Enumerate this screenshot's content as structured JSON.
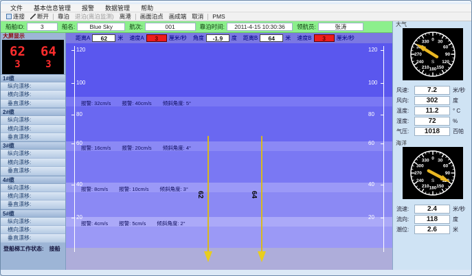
{
  "menu": {
    "items": [
      "文件",
      "基本信息管理",
      "报警",
      "数据管理",
      "帮助"
    ]
  },
  "toolbar": {
    "items": [
      {
        "label": "连接",
        "icon": "connect-icon",
        "disabled": false,
        "sep_after": false
      },
      {
        "label": "断开",
        "icon": "disconnect-icon",
        "disabled": false,
        "sep_after": true
      },
      {
        "label": "靠泊",
        "disabled": false,
        "sep_after": false
      },
      {
        "label": "退泊(离泊监测)",
        "disabled": true,
        "sep_after": false
      },
      {
        "label": "离港",
        "disabled": false,
        "sep_after": true
      },
      {
        "label": "画面泊点",
        "disabled": false,
        "sep_after": false
      },
      {
        "label": "画成端",
        "disabled": false,
        "sep_after": false
      },
      {
        "label": "取消",
        "disabled": false,
        "sep_after": true
      },
      {
        "label": "PMS",
        "disabled": false,
        "sep_after": false
      }
    ]
  },
  "info_bar": {
    "fields": [
      {
        "label": "船舶ID:",
        "value": "3"
      },
      {
        "label": "船名:",
        "value": "Blue Sky"
      },
      {
        "label": "航次:",
        "value": "001"
      },
      {
        "label": "靠泊时间:",
        "value": "2011-4-15 10:30:36"
      },
      {
        "label": "领航员:",
        "value": "张涛"
      }
    ]
  },
  "metrics_bar": {
    "fields": [
      {
        "label": "距离A",
        "value": "62",
        "unit": "米",
        "alert": false
      },
      {
        "label": "速度A",
        "value": "3",
        "unit": "厘米/秒",
        "alert": true
      },
      {
        "label": "角度",
        "value": "-1.9",
        "unit": "度",
        "alert": false
      },
      {
        "label": "距离B",
        "value": "64",
        "unit": "米",
        "alert": false
      },
      {
        "label": "速度B",
        "value": "3",
        "unit": "厘米/秒",
        "alert": true
      }
    ]
  },
  "sidebar": {
    "display_label": "大屏显示",
    "display_rows": [
      [
        "62",
        "64"
      ],
      [
        "3",
        "3"
      ]
    ],
    "groups": [
      {
        "header": "1#缆",
        "rows": [
          "纵向漂移:",
          "横向漂移:",
          "垂直漂移:"
        ]
      },
      {
        "header": "2#缆",
        "rows": [
          "纵向漂移:",
          "横向漂移:",
          "垂直漂移:"
        ]
      },
      {
        "header": "3#缆",
        "rows": [
          "纵向漂移:",
          "横向漂移:",
          "垂直漂移:"
        ]
      },
      {
        "header": "4#缆",
        "rows": [
          "纵向漂移:",
          "横向漂移:",
          "垂直漂移:"
        ]
      },
      {
        "header": "5#缆",
        "rows": [
          "纵向漂移:",
          "横向漂移:",
          "垂直漂移:"
        ]
      }
    ],
    "status_label": "登船梯工作状态:",
    "status_value": "接船"
  },
  "plot": {
    "axis_labels": [
      "120",
      "100",
      "80",
      "60",
      "40",
      "20"
    ],
    "alarm_bands": [
      {
        "warn": "报警: 32cm/s",
        "alarm": "报警: 40cm/s",
        "tilt": "倾斜角度: 5°"
      },
      {
        "warn": "报警: 16cm/s",
        "alarm": "报警: 20cm/s",
        "tilt": "倾斜角度: 4°"
      },
      {
        "warn": "报警: 8cm/s",
        "alarm": "报警: 10cm/s",
        "tilt": "倾斜角度: 3°"
      },
      {
        "warn": "报警: 4cm/s",
        "alarm": "报警: 5cm/s",
        "tilt": "倾斜角度: 2°"
      }
    ],
    "mooring_labels": [
      "62",
      "64"
    ]
  },
  "right_panel": {
    "sections": [
      {
        "title": "大气",
        "needle_deg": 302,
        "south_label": "S",
        "dial_numbers": [
          "0",
          "30",
          "60",
          "90",
          "120",
          "150",
          "180",
          "210",
          "240",
          "270",
          "300",
          "330"
        ],
        "fields": [
          {
            "label": "风速:",
            "value": "7.2",
            "unit": "米/秒"
          },
          {
            "label": "风向:",
            "value": "302",
            "unit": "度"
          },
          {
            "label": "温度:",
            "value": "11.2",
            "unit": "° C"
          },
          {
            "label": "湿度:",
            "value": "72",
            "unit": "%"
          },
          {
            "label": "气压:",
            "value": "1018",
            "unit": "百帕"
          }
        ]
      },
      {
        "title": "海洋",
        "needle_deg": 118,
        "south_label": "S",
        "dial_numbers": [
          "0",
          "30",
          "60",
          "90",
          "120",
          "150",
          "180",
          "210",
          "240",
          "270",
          "300",
          "330"
        ],
        "fields": [
          {
            "label": "流速:",
            "value": "2.4",
            "unit": "米/秒"
          },
          {
            "label": "流向:",
            "value": "118",
            "unit": "度"
          },
          {
            "label": "潮位:",
            "value": "2.6",
            "unit": "米"
          }
        ]
      }
    ]
  },
  "colors": {
    "info_bar_green": "#8cef8c",
    "alert_red": "#ee1c1c",
    "led_red": "#ff2d2d",
    "plot_blue": "#5a57ee",
    "needle_yellow": "#e9b722",
    "mooring_yellow": "#d8b81e"
  }
}
